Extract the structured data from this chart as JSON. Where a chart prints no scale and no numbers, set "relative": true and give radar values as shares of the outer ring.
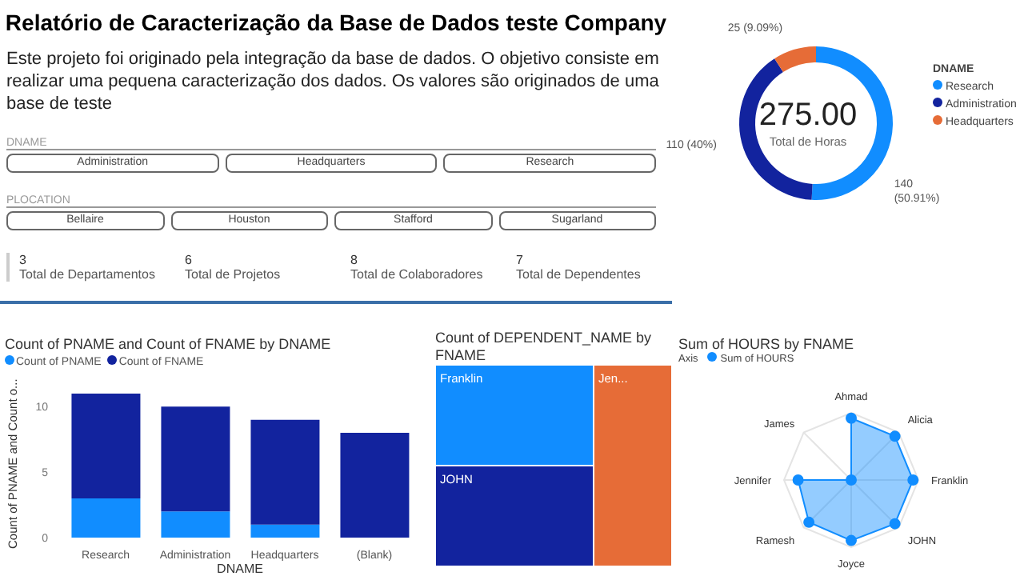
{
  "chart_data": [
    {
      "type": "other",
      "title": "Relatório de Caracterização da Base de Dados teste Company",
      "subtitle": "Este projeto foi originado pela integração da base de dados. O objetivo consiste em realizar uma pequena caracterização dos dados. Os valores são originados de uma base de teste"
    },
    {
      "type": "other",
      "title": "DNAME",
      "categories": [
        "Administration",
        "Headquarters",
        "Research"
      ]
    },
    {
      "type": "other",
      "title": "PLOCATION",
      "categories": [
        "Bellaire",
        "Houston",
        "Stafford",
        "Sugarland"
      ]
    },
    {
      "type": "other",
      "categories": [
        "Total de Departamentos",
        "Total de Projetos",
        "Total de Colaboradores",
        "Total de Dependentes"
      ],
      "values": [
        3,
        6,
        8,
        7
      ],
      "data_labels": true
    },
    {
      "type": "donut",
      "categories": [
        "Research",
        "Administration",
        "Headquarters"
      ],
      "values": [
        140,
        110,
        25
      ],
      "colors": [
        "#118dff",
        "#12239e",
        "#e66c37"
      ],
      "value_labels": [
        "140 (50.91%)",
        "110 (40%)",
        "25 (9.09%)"
      ],
      "legend_title": "DNAME",
      "legend": "right",
      "annotations": [
        "275.00",
        "Total de Horas"
      ]
    },
    {
      "type": "bar",
      "title": "Count of PNAME and Count of FNAME by DNAME",
      "xlabel": "DNAME",
      "ylabel": "Count of PNAME and Count o...",
      "categories": [
        "Research",
        "Administration",
        "Headquarters",
        "(Blank)"
      ],
      "stacked": true,
      "legend": "top left",
      "ylim": [
        0,
        11
      ],
      "yticks": [
        0,
        5,
        10
      ],
      "series": [
        {
          "name": "Count of PNAME",
          "color": "#118dff",
          "values": [
            3,
            2,
            1,
            0
          ]
        },
        {
          "name": "Count of FNAME",
          "color": "#12239e",
          "values": [
            8,
            8,
            8,
            8
          ]
        }
      ]
    },
    {
      "type": "other",
      "title": "Count of DEPENDENT_NAME by FNAME",
      "categories": [
        "Franklin",
        "JOHN",
        "Jen..."
      ],
      "colors": [
        "#118dff",
        "#12239e",
        "#e66c37"
      ]
    },
    {
      "type": "radar",
      "title": "Sum of HOURS by FNAME",
      "legend_title": "Axis",
      "legend": "top left",
      "relative": true,
      "marker": "circle",
      "categories": [
        "Ahmad",
        "Alicia",
        "Franklin",
        "JOHN",
        "Joyce",
        "Ramesh",
        "Jennifer",
        "James"
      ],
      "series": [
        {
          "name": "Sum of HOURS",
          "color": "#118dff",
          "values": [
            0.92,
            0.92,
            0.92,
            0.92,
            0.9,
            0.89,
            0.79,
            0
          ]
        }
      ]
    }
  ]
}
